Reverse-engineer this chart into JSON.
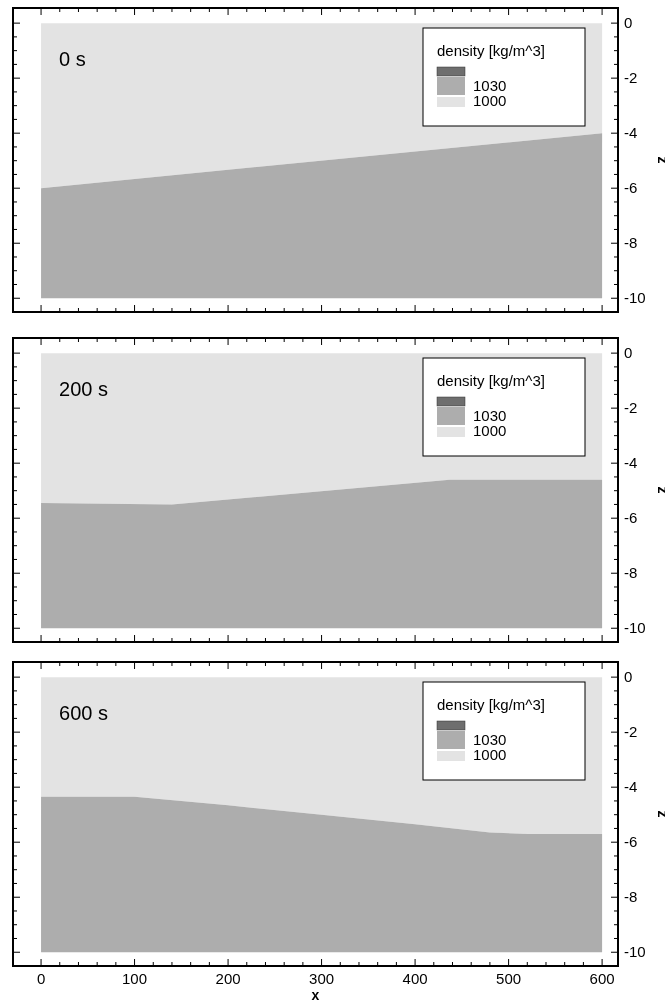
{
  "chart_data": [
    {
      "type": "area",
      "stacked": true,
      "title": "0 s",
      "ylabel": "z",
      "legend_title": "density [kg/m^3]",
      "legend": "top right",
      "tick_labels": "y",
      "xlim": [
        -30,
        617
      ],
      "ylim": [
        -10.5,
        0.55
      ],
      "xticks": [
        0,
        {
          "value": 20,
          "label": null
        },
        {
          "value": 40,
          "label": null
        },
        {
          "value": 60,
          "label": null
        },
        {
          "value": 80,
          "label": null
        },
        100,
        {
          "value": 120,
          "label": null
        },
        {
          "value": 140,
          "label": null
        },
        {
          "value": 160,
          "label": null
        },
        {
          "value": 180,
          "label": null
        },
        200,
        {
          "value": 220,
          "label": null
        },
        {
          "value": 240,
          "label": null
        },
        {
          "value": 260,
          "label": null
        },
        {
          "value": 280,
          "label": null
        },
        300,
        {
          "value": 320,
          "label": null
        },
        {
          "value": 340,
          "label": null
        },
        {
          "value": 360,
          "label": null
        },
        {
          "value": 380,
          "label": null
        },
        400,
        {
          "value": 420,
          "label": null
        },
        {
          "value": 440,
          "label": null
        },
        {
          "value": 460,
          "label": null
        },
        {
          "value": 480,
          "label": null
        },
        500,
        {
          "value": 520,
          "label": null
        },
        {
          "value": 540,
          "label": null
        },
        {
          "value": 560,
          "label": null
        },
        {
          "value": 580,
          "label": null
        },
        600
      ],
      "yticks": [
        -10,
        {
          "value": -9.5,
          "label": null
        },
        {
          "value": -9,
          "label": null
        },
        {
          "value": -8.5,
          "label": null
        },
        -8,
        {
          "value": -7.5,
          "label": null
        },
        {
          "value": -7,
          "label": null
        },
        {
          "value": -6.5,
          "label": null
        },
        -6,
        {
          "value": -5.5,
          "label": null
        },
        {
          "value": -5,
          "label": null
        },
        {
          "value": -4.5,
          "label": null
        },
        -4,
        {
          "value": -3.5,
          "label": null
        },
        {
          "value": -3,
          "label": null
        },
        {
          "value": -2.5,
          "label": null
        },
        -2,
        {
          "value": -1.5,
          "label": null
        },
        {
          "value": -1,
          "label": null
        },
        {
          "value": -0.5,
          "label": null
        },
        0
      ],
      "x": [
        0,
        600
      ],
      "series": [
        {
          "name": "1000",
          "color": "#e3e3e3",
          "values": [
            -6,
            -4
          ]
        },
        {
          "name": "1030",
          "color": "#adadad",
          "values": [
            -4,
            -6
          ]
        }
      ]
    },
    {
      "type": "area",
      "stacked": true,
      "title": "200 s",
      "ylabel": "z",
      "legend_title": "density [kg/m^3]",
      "legend": "top right",
      "tick_labels": "y",
      "xlim": [
        -30,
        617
      ],
      "ylim": [
        -10.5,
        0.55
      ],
      "xticks": [
        0,
        {
          "value": 20,
          "label": null
        },
        {
          "value": 40,
          "label": null
        },
        {
          "value": 60,
          "label": null
        },
        {
          "value": 80,
          "label": null
        },
        100,
        {
          "value": 120,
          "label": null
        },
        {
          "value": 140,
          "label": null
        },
        {
          "value": 160,
          "label": null
        },
        {
          "value": 180,
          "label": null
        },
        200,
        {
          "value": 220,
          "label": null
        },
        {
          "value": 240,
          "label": null
        },
        {
          "value": 260,
          "label": null
        },
        {
          "value": 280,
          "label": null
        },
        300,
        {
          "value": 320,
          "label": null
        },
        {
          "value": 340,
          "label": null
        },
        {
          "value": 360,
          "label": null
        },
        {
          "value": 380,
          "label": null
        },
        400,
        {
          "value": 420,
          "label": null
        },
        {
          "value": 440,
          "label": null
        },
        {
          "value": 460,
          "label": null
        },
        {
          "value": 480,
          "label": null
        },
        500,
        {
          "value": 520,
          "label": null
        },
        {
          "value": 540,
          "label": null
        },
        {
          "value": 560,
          "label": null
        },
        {
          "value": 580,
          "label": null
        },
        600
      ],
      "yticks": [
        -10,
        {
          "value": -9.5,
          "label": null
        },
        {
          "value": -9,
          "label": null
        },
        {
          "value": -8.5,
          "label": null
        },
        -8,
        {
          "value": -7.5,
          "label": null
        },
        {
          "value": -7,
          "label": null
        },
        {
          "value": -6.5,
          "label": null
        },
        -6,
        {
          "value": -5.5,
          "label": null
        },
        {
          "value": -5,
          "label": null
        },
        {
          "value": -4.5,
          "label": null
        },
        -4,
        {
          "value": -3.5,
          "label": null
        },
        {
          "value": -3,
          "label": null
        },
        {
          "value": -2.5,
          "label": null
        },
        -2,
        {
          "value": -1.5,
          "label": null
        },
        {
          "value": -1,
          "label": null
        },
        {
          "value": -0.5,
          "label": null
        },
        0
      ],
      "x": [
        0,
        140,
        437,
        600
      ],
      "series": [
        {
          "name": "1000",
          "color": "#e3e3e3",
          "values": [
            -5.45,
            -5.5,
            -4.6,
            -4.6
          ]
        },
        {
          "name": "1030",
          "color": "#adadad",
          "values": [
            -4.55,
            -4.5,
            -5.4,
            -5.4
          ]
        }
      ]
    },
    {
      "type": "area",
      "stacked": true,
      "title": "600 s",
      "xlabel": "x",
      "ylabel": "z",
      "legend_title": "density [kg/m^3]",
      "legend": "top right",
      "xlim": [
        -30,
        617
      ],
      "ylim": [
        -10.5,
        0.55
      ],
      "xticks": [
        0,
        {
          "value": 20,
          "label": null
        },
        {
          "value": 40,
          "label": null
        },
        {
          "value": 60,
          "label": null
        },
        {
          "value": 80,
          "label": null
        },
        100,
        {
          "value": 120,
          "label": null
        },
        {
          "value": 140,
          "label": null
        },
        {
          "value": 160,
          "label": null
        },
        {
          "value": 180,
          "label": null
        },
        200,
        {
          "value": 220,
          "label": null
        },
        {
          "value": 240,
          "label": null
        },
        {
          "value": 260,
          "label": null
        },
        {
          "value": 280,
          "label": null
        },
        300,
        {
          "value": 320,
          "label": null
        },
        {
          "value": 340,
          "label": null
        },
        {
          "value": 360,
          "label": null
        },
        {
          "value": 380,
          "label": null
        },
        400,
        {
          "value": 420,
          "label": null
        },
        {
          "value": 440,
          "label": null
        },
        {
          "value": 460,
          "label": null
        },
        {
          "value": 480,
          "label": null
        },
        500,
        {
          "value": 520,
          "label": null
        },
        {
          "value": 540,
          "label": null
        },
        {
          "value": 560,
          "label": null
        },
        {
          "value": 580,
          "label": null
        },
        600
      ],
      "yticks": [
        -10,
        {
          "value": -9.5,
          "label": null
        },
        {
          "value": -9,
          "label": null
        },
        {
          "value": -8.5,
          "label": null
        },
        -8,
        {
          "value": -7.5,
          "label": null
        },
        {
          "value": -7,
          "label": null
        },
        {
          "value": -6.5,
          "label": null
        },
        -6,
        {
          "value": -5.5,
          "label": null
        },
        {
          "value": -5,
          "label": null
        },
        {
          "value": -4.5,
          "label": null
        },
        -4,
        {
          "value": -3.5,
          "label": null
        },
        {
          "value": -3,
          "label": null
        },
        {
          "value": -2.5,
          "label": null
        },
        -2,
        {
          "value": -1.5,
          "label": null
        },
        {
          "value": -1,
          "label": null
        },
        {
          "value": -0.5,
          "label": null
        },
        0
      ],
      "x": [
        0,
        100,
        200,
        300,
        400,
        480,
        520,
        600
      ],
      "series": [
        {
          "name": "1000",
          "color": "#e3e3e3",
          "values": [
            -4.35,
            -4.35,
            -4.66,
            -5.0,
            -5.35,
            -5.65,
            -5.7,
            -5.7
          ]
        },
        {
          "name": "1030",
          "color": "#adadad",
          "values": [
            -5.65,
            -5.65,
            -5.34,
            -5.0,
            -4.65,
            -4.35,
            -4.3,
            -4.3
          ]
        }
      ]
    }
  ]
}
